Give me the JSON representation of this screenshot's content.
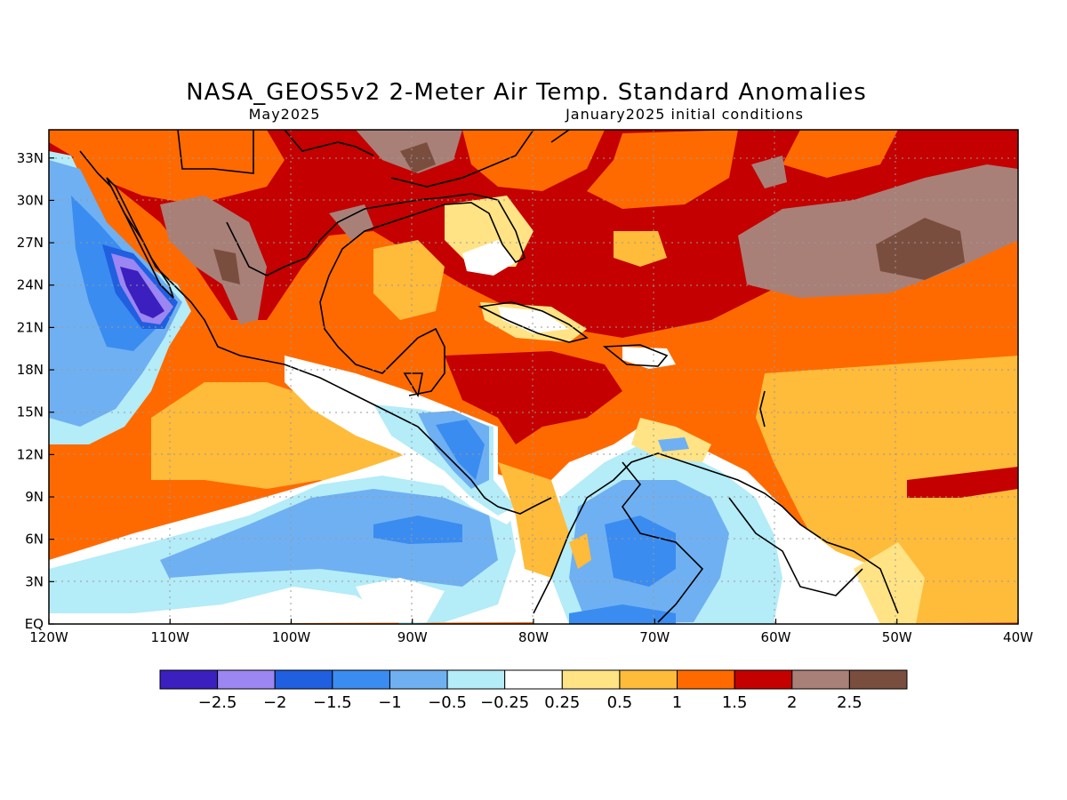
{
  "title": "NASA_GEOS5v2 2-Meter Air Temp. Standard Anomalies",
  "valid_month": "May2025",
  "initial_conditions": "January2025 initial conditions",
  "lon_labels": [
    "120W",
    "110W",
    "100W",
    "90W",
    "80W",
    "70W",
    "60W",
    "50W",
    "40W"
  ],
  "lat_labels": [
    "EQ",
    "3N",
    "6N",
    "9N",
    "12N",
    "15N",
    "18N",
    "21N",
    "24N",
    "27N",
    "30N",
    "33N"
  ],
  "colorbar": {
    "labels": [
      "-2.5",
      "-2",
      "-1.5",
      "-1",
      "-0.5",
      "-0.25",
      "0.25",
      "0.5",
      "1",
      "1.5",
      "2",
      "2.5"
    ],
    "colors": [
      "#3b1fbf",
      "#9b86f2",
      "#1f5fe0",
      "#3a8cf0",
      "#6fb0f2",
      "#b4ecf8",
      "#ffffff",
      "#ffe385",
      "#ffbb3a",
      "#ff6a00",
      "#c40000",
      "#a88078",
      "#7a4e3f"
    ]
  },
  "map": {
    "lon_range": [
      "120W",
      "40W"
    ],
    "lat_range": [
      "EQ",
      "35N"
    ],
    "grid": true,
    "region": "Mexico, Central America, Caribbean, northern South America"
  }
}
